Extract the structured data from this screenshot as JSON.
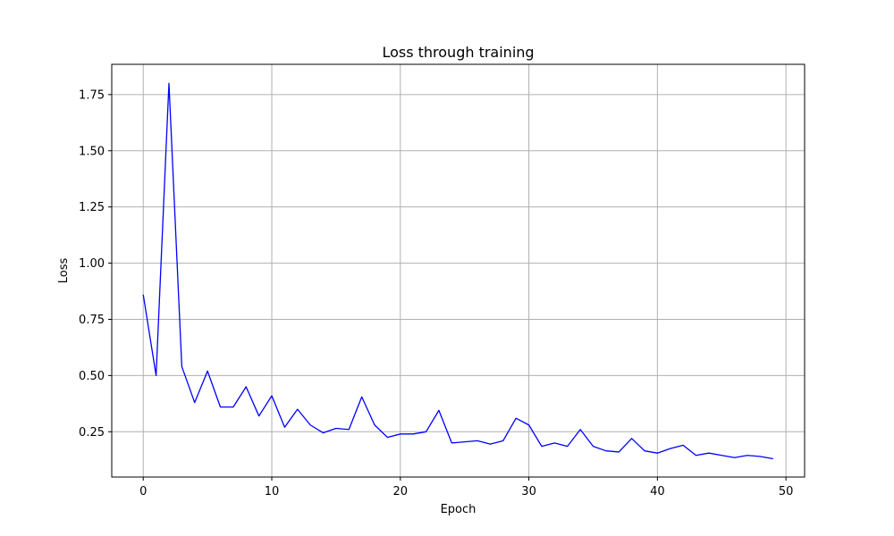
{
  "chart_data": {
    "type": "line",
    "title": "Loss through training",
    "xlabel": "Epoch",
    "ylabel": "Loss",
    "xlim": [
      -2.45,
      51.45
    ],
    "ylim": [
      0.0485,
      1.8845
    ],
    "xticks": [
      0,
      10,
      20,
      30,
      40,
      50
    ],
    "xtick_labels": [
      "0",
      "10",
      "20",
      "30",
      "40",
      "50"
    ],
    "yticks": [
      0.25,
      0.5,
      0.75,
      1.0,
      1.25,
      1.5,
      1.75
    ],
    "ytick_labels": [
      "0.25",
      "0.50",
      "0.75",
      "1.00",
      "1.25",
      "1.50",
      "1.75"
    ],
    "grid": true,
    "series": [
      {
        "color": "#0000ff",
        "x": [
          0,
          1,
          2,
          3,
          4,
          5,
          6,
          7,
          8,
          9,
          10,
          11,
          12,
          13,
          14,
          15,
          16,
          17,
          18,
          19,
          20,
          21,
          22,
          23,
          24,
          25,
          26,
          27,
          28,
          29,
          30,
          31,
          32,
          33,
          34,
          35,
          36,
          37,
          38,
          39,
          40,
          41,
          42,
          43,
          44,
          45,
          46,
          47,
          48,
          49
        ],
        "values": [
          0.86,
          0.5,
          1.8,
          0.54,
          0.38,
          0.52,
          0.36,
          0.36,
          0.45,
          0.32,
          0.41,
          0.27,
          0.35,
          0.28,
          0.245,
          0.265,
          0.26,
          0.405,
          0.28,
          0.225,
          0.24,
          0.24,
          0.25,
          0.345,
          0.2,
          0.205,
          0.21,
          0.195,
          0.21,
          0.31,
          0.28,
          0.185,
          0.2,
          0.185,
          0.26,
          0.185,
          0.165,
          0.16,
          0.22,
          0.165,
          0.155,
          0.175,
          0.19,
          0.145,
          0.155,
          0.145,
          0.135,
          0.145,
          0.14,
          0.13
        ]
      }
    ]
  }
}
